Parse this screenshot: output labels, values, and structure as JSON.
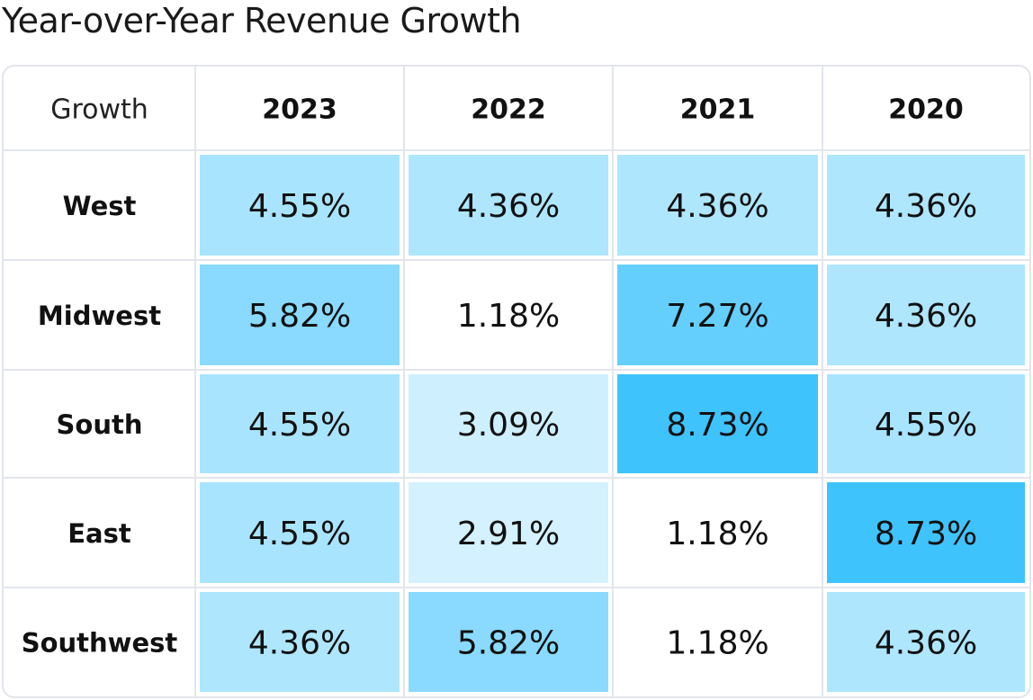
{
  "title": "Year-over-Year Revenue Growth",
  "chart_data": {
    "type": "heatmap",
    "title": "Year-over-Year Revenue Growth",
    "corner_label": "Growth",
    "columns": [
      "2023",
      "2022",
      "2021",
      "2020"
    ],
    "rows": [
      "West",
      "Midwest",
      "South",
      "East",
      "Southwest"
    ],
    "values": [
      [
        4.55,
        4.36,
        4.36,
        4.36
      ],
      [
        5.82,
        1.18,
        7.27,
        4.36
      ],
      [
        4.55,
        3.09,
        8.73,
        4.55
      ],
      [
        4.55,
        2.91,
        1.18,
        8.73
      ],
      [
        4.36,
        5.82,
        1.18,
        4.36
      ]
    ],
    "labels": [
      [
        "4.55%",
        "4.36%",
        "4.36%",
        "4.36%"
      ],
      [
        "5.82%",
        "1.18%",
        "7.27%",
        "4.36%"
      ],
      [
        "4.55%",
        "3.09%",
        "8.73%",
        "4.55%"
      ],
      [
        "4.55%",
        "2.91%",
        "1.18%",
        "8.73%"
      ],
      [
        "4.36%",
        "5.82%",
        "1.18%",
        "4.36%"
      ]
    ],
    "color_low": "#ffffff",
    "color_high": "#3fc3fd",
    "range": [
      1.18,
      8.73
    ],
    "grid_color": "#e3e5ec"
  }
}
